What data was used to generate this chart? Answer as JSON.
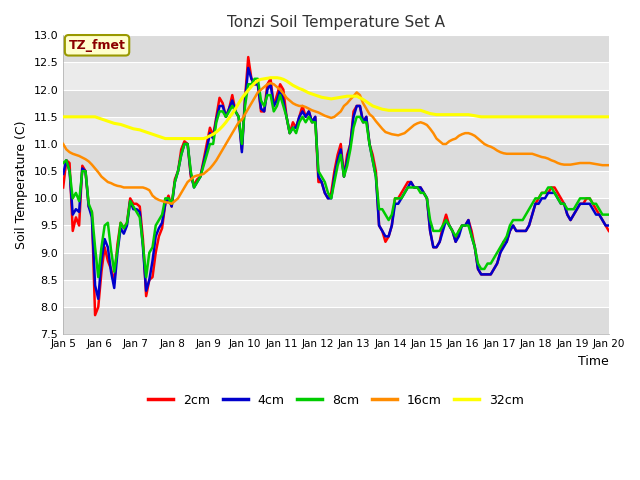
{
  "title": "Tonzi Soil Temperature Set A",
  "xlabel": "Time",
  "ylabel": "Soil Temperature (C)",
  "ylim": [
    7.5,
    13.0
  ],
  "yticks": [
    7.5,
    8.0,
    8.5,
    9.0,
    9.5,
    10.0,
    10.5,
    11.0,
    11.5,
    12.0,
    12.5,
    13.0
  ],
  "xtick_labels": [
    "Jan 5",
    "Jan 6",
    "Jan 7",
    "Jan 8",
    "Jan 9",
    "Jan 10",
    "Jan 11",
    "Jan 12",
    "Jan 13",
    "Jan 14",
    "Jan 15",
    "Jan 16",
    "Jan 17",
    "Jan 18",
    "Jan 19",
    "Jan 20"
  ],
  "annotation_text": "TZ_fmet",
  "annotation_color": "#8B0000",
  "annotation_bg": "#FFFFCC",
  "annotation_border": "#999900",
  "line_colors": [
    "#FF0000",
    "#0000CC",
    "#00CC00",
    "#FF8C00",
    "#FFFF00"
  ],
  "line_labels": [
    "2cm",
    "4cm",
    "8cm",
    "16cm",
    "32cm"
  ],
  "line_width": 1.5,
  "fig_bg": "#FFFFFF",
  "plot_bg": "#E8E8E8",
  "grid_color": "#FFFFFF",
  "band_colors": [
    "#DCDCDC",
    "#EBEBEB"
  ],
  "t_2cm": [
    10.2,
    10.7,
    10.65,
    9.4,
    9.65,
    9.5,
    10.6,
    10.5,
    9.85,
    9.75,
    7.85,
    8.0,
    8.65,
    9.1,
    8.85,
    8.7,
    8.45,
    9.15,
    9.55,
    9.45,
    9.55,
    10.0,
    9.9,
    9.9,
    9.85,
    9.25,
    8.2,
    8.5,
    8.55,
    9.0,
    9.3,
    9.45,
    9.9,
    10.05,
    9.85,
    10.35,
    10.5,
    10.9,
    11.05,
    11.0,
    10.4,
    10.25,
    10.35,
    10.4,
    10.7,
    11.0,
    11.3,
    11.15,
    11.5,
    11.85,
    11.75,
    11.5,
    11.65,
    11.9,
    11.6,
    11.5,
    10.9,
    11.85,
    12.6,
    12.2,
    12.1,
    12.1,
    11.6,
    11.6,
    12.1,
    12.2,
    11.7,
    11.9,
    12.1,
    12.0,
    11.5,
    11.2,
    11.4,
    11.3,
    11.5,
    11.7,
    11.5,
    11.6,
    11.4,
    11.5,
    10.3,
    10.3,
    10.1,
    10.0,
    10.1,
    10.5,
    10.8,
    11.0,
    10.4,
    10.8,
    11.0,
    11.6,
    11.7,
    11.7,
    11.4,
    11.5,
    11.0,
    10.8,
    10.5,
    9.5,
    9.4,
    9.2,
    9.3,
    9.5,
    10.0,
    10.0,
    10.1,
    10.2,
    10.3,
    10.3,
    10.2,
    10.2,
    10.2,
    10.1,
    10.0,
    9.4,
    9.1,
    9.1,
    9.2,
    9.5,
    9.7,
    9.5,
    9.4,
    9.2,
    9.4,
    9.5,
    9.5,
    9.6,
    9.4,
    9.1,
    8.7,
    8.6,
    8.6,
    8.6,
    8.6,
    8.7,
    8.8,
    9.0,
    9.2,
    9.2,
    9.4,
    9.5,
    9.4,
    9.4,
    9.4,
    9.4,
    9.5,
    9.7,
    9.9,
    10.0,
    10.1,
    10.1,
    10.1,
    10.2,
    10.2,
    10.1,
    10.0,
    9.9,
    9.7,
    9.6,
    9.7,
    9.8,
    9.9,
    9.9,
    10.0,
    10.0,
    9.9,
    9.8,
    9.7,
    9.6,
    9.5,
    9.4
  ],
  "t_4cm": [
    10.45,
    10.7,
    10.5,
    9.7,
    9.8,
    9.75,
    10.55,
    10.5,
    9.85,
    9.65,
    8.4,
    8.15,
    8.85,
    9.25,
    9.1,
    8.65,
    8.35,
    9.0,
    9.45,
    9.35,
    9.5,
    9.95,
    9.8,
    9.8,
    9.75,
    9.1,
    8.3,
    8.5,
    8.85,
    9.3,
    9.45,
    9.55,
    9.9,
    10.0,
    9.85,
    10.3,
    10.5,
    10.8,
    11.0,
    11.0,
    10.45,
    10.2,
    10.3,
    10.4,
    10.65,
    10.9,
    11.2,
    11.1,
    11.45,
    11.7,
    11.7,
    11.5,
    11.65,
    11.8,
    11.6,
    11.5,
    10.85,
    11.8,
    12.4,
    12.2,
    12.1,
    12.1,
    11.65,
    11.6,
    12.0,
    12.1,
    11.7,
    11.8,
    12.0,
    11.8,
    11.5,
    11.2,
    11.3,
    11.3,
    11.5,
    11.6,
    11.5,
    11.6,
    11.4,
    11.5,
    10.4,
    10.3,
    10.1,
    10.0,
    10.0,
    10.4,
    10.7,
    10.9,
    10.4,
    10.7,
    11.0,
    11.5,
    11.7,
    11.7,
    11.4,
    11.5,
    11.0,
    10.7,
    10.4,
    9.5,
    9.4,
    9.3,
    9.3,
    9.5,
    9.9,
    9.9,
    10.0,
    10.1,
    10.2,
    10.3,
    10.2,
    10.2,
    10.2,
    10.1,
    10.0,
    9.4,
    9.1,
    9.1,
    9.2,
    9.4,
    9.6,
    9.5,
    9.4,
    9.2,
    9.3,
    9.5,
    9.5,
    9.6,
    9.3,
    9.1,
    8.7,
    8.6,
    8.6,
    8.6,
    8.6,
    8.7,
    8.8,
    9.0,
    9.1,
    9.2,
    9.4,
    9.5,
    9.4,
    9.4,
    9.4,
    9.4,
    9.5,
    9.7,
    9.9,
    9.9,
    10.0,
    10.0,
    10.1,
    10.1,
    10.1,
    10.0,
    9.9,
    9.9,
    9.7,
    9.6,
    9.7,
    9.8,
    9.9,
    9.9,
    9.9,
    9.9,
    9.8,
    9.7,
    9.7,
    9.6,
    9.5,
    9.5
  ],
  "t_8cm": [
    10.65,
    10.7,
    10.5,
    10.0,
    10.1,
    9.95,
    10.5,
    10.5,
    9.9,
    9.75,
    9.1,
    8.55,
    9.1,
    9.5,
    9.55,
    9.05,
    8.65,
    9.05,
    9.55,
    9.45,
    9.55,
    9.95,
    9.85,
    9.75,
    9.65,
    9.15,
    8.55,
    9.0,
    9.1,
    9.5,
    9.6,
    9.7,
    10.0,
    10.0,
    9.9,
    10.3,
    10.5,
    10.8,
    11.0,
    11.0,
    10.5,
    10.2,
    10.3,
    10.4,
    10.6,
    10.8,
    11.0,
    11.0,
    11.4,
    11.6,
    11.6,
    11.5,
    11.6,
    11.7,
    11.6,
    11.5,
    11.0,
    11.7,
    12.1,
    12.1,
    12.2,
    12.2,
    11.8,
    11.7,
    11.9,
    11.9,
    11.6,
    11.7,
    11.9,
    11.7,
    11.5,
    11.2,
    11.3,
    11.2,
    11.4,
    11.5,
    11.4,
    11.5,
    11.4,
    11.4,
    10.5,
    10.4,
    10.3,
    10.1,
    10.0,
    10.3,
    10.6,
    10.8,
    10.4,
    10.6,
    10.9,
    11.3,
    11.5,
    11.5,
    11.4,
    11.4,
    11.0,
    10.7,
    10.4,
    9.8,
    9.8,
    9.7,
    9.6,
    9.7,
    10.0,
    10.0,
    10.0,
    10.1,
    10.2,
    10.2,
    10.2,
    10.2,
    10.1,
    10.1,
    10.0,
    9.6,
    9.4,
    9.4,
    9.4,
    9.5,
    9.6,
    9.5,
    9.4,
    9.3,
    9.4,
    9.5,
    9.5,
    9.5,
    9.3,
    9.1,
    8.8,
    8.7,
    8.7,
    8.8,
    8.8,
    8.9,
    9.0,
    9.1,
    9.2,
    9.3,
    9.5,
    9.6,
    9.6,
    9.6,
    9.6,
    9.7,
    9.8,
    9.9,
    10.0,
    10.0,
    10.1,
    10.1,
    10.2,
    10.2,
    10.1,
    10.0,
    9.9,
    9.9,
    9.8,
    9.8,
    9.8,
    9.9,
    10.0,
    10.0,
    10.0,
    10.0,
    9.9,
    9.9,
    9.8,
    9.7,
    9.7,
    9.7
  ],
  "t_16cm": [
    11.0,
    10.9,
    10.85,
    10.82,
    10.8,
    10.78,
    10.75,
    10.72,
    10.68,
    10.62,
    10.55,
    10.48,
    10.4,
    10.35,
    10.3,
    10.28,
    10.25,
    10.23,
    10.22,
    10.2,
    10.2,
    10.2,
    10.2,
    10.2,
    10.2,
    10.2,
    10.18,
    10.15,
    10.05,
    10.0,
    9.97,
    9.95,
    9.93,
    9.92,
    9.9,
    9.95,
    10.0,
    10.1,
    10.2,
    10.3,
    10.35,
    10.4,
    10.42,
    10.43,
    10.45,
    10.5,
    10.55,
    10.62,
    10.7,
    10.8,
    10.9,
    11.0,
    11.1,
    11.2,
    11.3,
    11.4,
    11.45,
    11.55,
    11.65,
    11.75,
    11.85,
    11.95,
    12.0,
    12.05,
    12.1,
    12.12,
    12.1,
    12.05,
    12.0,
    11.93,
    11.85,
    11.8,
    11.75,
    11.72,
    11.7,
    11.7,
    11.68,
    11.65,
    11.62,
    11.6,
    11.58,
    11.55,
    11.52,
    11.5,
    11.48,
    11.5,
    11.55,
    11.6,
    11.7,
    11.75,
    11.82,
    11.88,
    11.95,
    11.9,
    11.75,
    11.65,
    11.55,
    11.5,
    11.42,
    11.35,
    11.28,
    11.22,
    11.2,
    11.18,
    11.17,
    11.16,
    11.18,
    11.2,
    11.25,
    11.3,
    11.35,
    11.38,
    11.4,
    11.38,
    11.35,
    11.28,
    11.2,
    11.1,
    11.05,
    11.0,
    11.0,
    11.05,
    11.08,
    11.1,
    11.15,
    11.18,
    11.2,
    11.2,
    11.18,
    11.15,
    11.1,
    11.05,
    11.0,
    10.97,
    10.95,
    10.92,
    10.88,
    10.85,
    10.83,
    10.82,
    10.82,
    10.82,
    10.82,
    10.82,
    10.82,
    10.82,
    10.82,
    10.82,
    10.8,
    10.78,
    10.76,
    10.75,
    10.73,
    10.7,
    10.68,
    10.65,
    10.63,
    10.62,
    10.62,
    10.62,
    10.63,
    10.64,
    10.65,
    10.65,
    10.65,
    10.65,
    10.64,
    10.63,
    10.62,
    10.61,
    10.61,
    10.61
  ],
  "t_32cm": [
    11.5,
    11.5,
    11.5,
    11.5,
    11.5,
    11.5,
    11.5,
    11.5,
    11.5,
    11.5,
    11.5,
    11.48,
    11.46,
    11.44,
    11.42,
    11.4,
    11.38,
    11.37,
    11.36,
    11.34,
    11.32,
    11.3,
    11.28,
    11.27,
    11.26,
    11.24,
    11.22,
    11.2,
    11.18,
    11.16,
    11.14,
    11.12,
    11.1,
    11.1,
    11.1,
    11.1,
    11.1,
    11.1,
    11.1,
    11.1,
    11.1,
    11.1,
    11.1,
    11.1,
    11.1,
    11.12,
    11.15,
    11.18,
    11.22,
    11.27,
    11.33,
    11.4,
    11.48,
    11.56,
    11.65,
    11.75,
    11.84,
    11.92,
    11.99,
    12.06,
    12.12,
    12.17,
    12.19,
    12.2,
    12.21,
    12.22,
    12.22,
    12.22,
    12.21,
    12.19,
    12.16,
    12.12,
    12.08,
    12.05,
    12.02,
    12.0,
    11.97,
    11.94,
    11.92,
    11.9,
    11.88,
    11.86,
    11.85,
    11.84,
    11.83,
    11.84,
    11.85,
    11.86,
    11.87,
    11.88,
    11.88,
    11.88,
    11.88,
    11.85,
    11.82,
    11.78,
    11.74,
    11.7,
    11.68,
    11.66,
    11.64,
    11.63,
    11.62,
    11.62,
    11.62,
    11.62,
    11.62,
    11.62,
    11.62,
    11.62,
    11.62,
    11.62,
    11.62,
    11.6,
    11.58,
    11.56,
    11.55,
    11.54,
    11.54,
    11.54,
    11.54,
    11.54,
    11.54,
    11.54,
    11.54,
    11.54,
    11.54,
    11.54,
    11.53,
    11.52,
    11.51,
    11.5,
    11.5,
    11.5,
    11.5,
    11.5,
    11.5,
    11.5,
    11.5,
    11.5,
    11.5,
    11.5,
    11.5,
    11.5,
    11.5,
    11.5,
    11.5,
    11.5,
    11.5,
    11.5,
    11.5,
    11.5,
    11.5,
    11.5,
    11.5,
    11.5,
    11.5,
    11.5,
    11.5,
    11.5,
    11.5,
    11.5,
    11.5,
    11.5,
    11.5,
    11.5,
    11.5,
    11.5,
    11.5,
    11.5,
    11.5,
    11.5
  ]
}
